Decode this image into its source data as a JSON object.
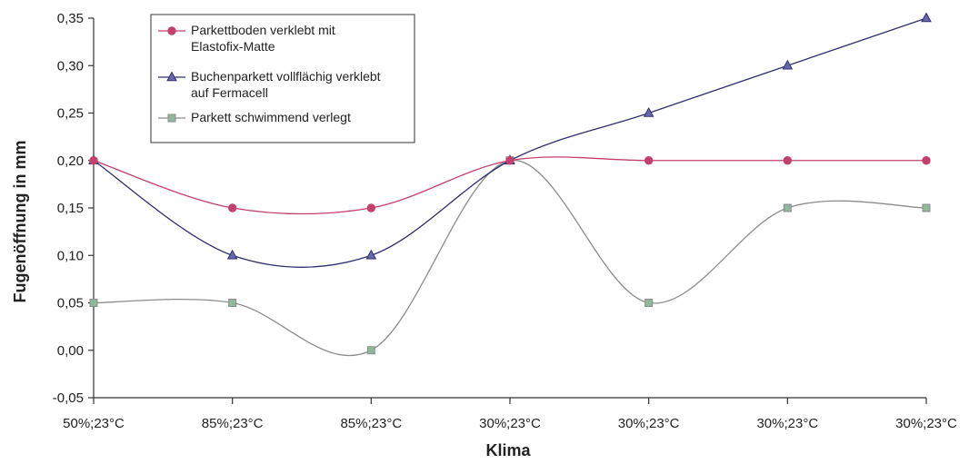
{
  "chart_data": {
    "type": "line",
    "smooth": true,
    "xlabel": "Klima",
    "ylabel": "Fugenöffnung in mm",
    "categories": [
      "50%;23°C",
      "85%;23°C",
      "85%;23°C",
      "30%;23°C",
      "30%;23°C",
      "30%;23°C",
      "30%;23°C"
    ],
    "ylim": [
      -0.05,
      0.35
    ],
    "yticks": [
      -0.05,
      0.0,
      0.05,
      0.1,
      0.15,
      0.2,
      0.25,
      0.3,
      0.35
    ],
    "ytick_labels": [
      "-0,05",
      "0,00",
      "0,05",
      "0,10",
      "0,15",
      "0,20",
      "0,25",
      "0,30",
      "0,35"
    ],
    "grid": false,
    "legend_position": "top-left",
    "series": [
      {
        "legend_lines": [
          "Parkettboden verklebt mit",
          "Elastofix-Matte"
        ],
        "marker": "circle",
        "color": "#c4406b",
        "values": [
          0.2,
          0.15,
          0.15,
          0.2,
          0.2,
          0.2,
          0.2
        ]
      },
      {
        "legend_lines": [
          "Buchenparkett vollflächig verklebt",
          "auf Fermacell"
        ],
        "marker": "triangle",
        "color": "#2e2e6e",
        "values": [
          0.2,
          0.1,
          0.1,
          0.2,
          0.25,
          0.3,
          0.35
        ]
      },
      {
        "legend_lines": [
          "Parkett schwimmend verlegt"
        ],
        "marker": "square",
        "color": "#8c8c8c",
        "marker_fill": "#8fb89a",
        "values": [
          0.05,
          0.05,
          0.0,
          0.2,
          0.05,
          0.15,
          0.15
        ]
      }
    ]
  }
}
